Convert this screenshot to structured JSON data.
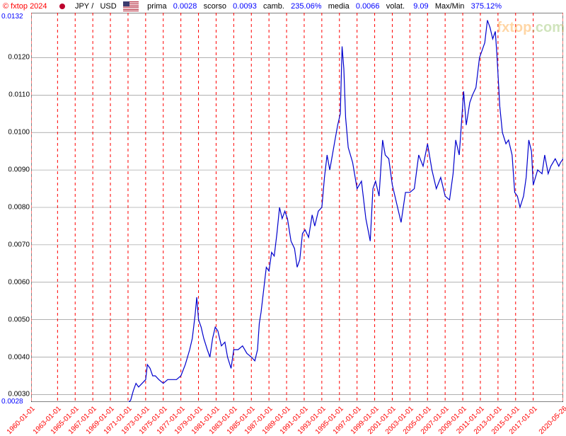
{
  "header": {
    "copyright": "© fxtop 2024",
    "base_currency": "JPY",
    "slash": "/",
    "quote_currency": "USD",
    "stats": [
      {
        "label": "prima",
        "value": "0.0028"
      },
      {
        "label": "scorso",
        "value": "0.0093"
      },
      {
        "label": "camb.",
        "value": "235.06%"
      },
      {
        "label": "media",
        "value": "0.0066"
      },
      {
        "label": "volat.",
        "value": "9.09"
      },
      {
        "label": "Max/Min",
        "value": "375.12%"
      }
    ]
  },
  "chart": {
    "type": "line",
    "background_color": "#ffffff",
    "grid_color": "#808080",
    "vline_color": "#ff0000",
    "vline_dash": "4,4",
    "line_color": "#0000cd",
    "line_width": 1.2,
    "y_axis": {
      "min_label": "0.0028",
      "max_label": "0.0132",
      "min": 0.0028,
      "max": 0.0132,
      "ticks": [
        {
          "v": 0.003,
          "label": "0.0030"
        },
        {
          "v": 0.004,
          "label": "0.0040"
        },
        {
          "v": 0.005,
          "label": "0.0050"
        },
        {
          "v": 0.006,
          "label": "0.0060"
        },
        {
          "v": 0.007,
          "label": "0.0070"
        },
        {
          "v": 0.008,
          "label": "0.0080"
        },
        {
          "v": 0.009,
          "label": "0.0090"
        },
        {
          "v": 0.01,
          "label": "0.0100"
        },
        {
          "v": 0.011,
          "label": "0.0110"
        },
        {
          "v": 0.012,
          "label": "0.0120"
        }
      ],
      "label_color": "#000000",
      "label_fontsize": 10
    },
    "x_axis": {
      "min": 1960.0,
      "max": 2020.4,
      "label_color": "#ff0000",
      "label_fontsize": 10,
      "vlines": [
        {
          "x": 1960.0,
          "label": "1960-01-01"
        },
        {
          "x": 1963.0,
          "label": "1963-01-01"
        },
        {
          "x": 1965.0,
          "label": "1965-01-01"
        },
        {
          "x": 1967.0,
          "label": "1967-01-01"
        },
        {
          "x": 1969.0,
          "label": "1969-01-01"
        },
        {
          "x": 1971.0,
          "label": "1971-01-01"
        },
        {
          "x": 1973.0,
          "label": "1973-01-01"
        },
        {
          "x": 1975.0,
          "label": "1975-01-01"
        },
        {
          "x": 1977.0,
          "label": "1977-01-01"
        },
        {
          "x": 1979.0,
          "label": "1979-01-01"
        },
        {
          "x": 1981.0,
          "label": "1981-01-01"
        },
        {
          "x": 1983.0,
          "label": "1983-01-01"
        },
        {
          "x": 1985.0,
          "label": "1985-01-01"
        },
        {
          "x": 1987.0,
          "label": "1987-01-01"
        },
        {
          "x": 1989.0,
          "label": "1989-01-01"
        },
        {
          "x": 1991.0,
          "label": "1991-01-01"
        },
        {
          "x": 1993.0,
          "label": "1993-01-01"
        },
        {
          "x": 1995.0,
          "label": "1995-01-01"
        },
        {
          "x": 1997.0,
          "label": "1997-01-01"
        },
        {
          "x": 1999.0,
          "label": "1999-01-01"
        },
        {
          "x": 2001.0,
          "label": "2001-01-01"
        },
        {
          "x": 2003.0,
          "label": "2003-01-01"
        },
        {
          "x": 2005.0,
          "label": "2005-01-01"
        },
        {
          "x": 2007.0,
          "label": "2007-01-01"
        },
        {
          "x": 2009.0,
          "label": "2009-01-01"
        },
        {
          "x": 2011.0,
          "label": "2011-01-01"
        },
        {
          "x": 2013.0,
          "label": "2013-01-01"
        },
        {
          "x": 2015.0,
          "label": "2015-01-01"
        },
        {
          "x": 2017.0,
          "label": "2017-01-01"
        },
        {
          "x": 2020.4,
          "label": "2020-05-26"
        }
      ]
    },
    "series": [
      {
        "x": 1960.0,
        "y": 0.00278
      },
      {
        "x": 1971.0,
        "y": 0.00278
      },
      {
        "x": 1971.3,
        "y": 0.00285
      },
      {
        "x": 1971.6,
        "y": 0.0031
      },
      {
        "x": 1971.9,
        "y": 0.0033
      },
      {
        "x": 1972.2,
        "y": 0.0032
      },
      {
        "x": 1972.6,
        "y": 0.0033
      },
      {
        "x": 1973.0,
        "y": 0.0034
      },
      {
        "x": 1973.2,
        "y": 0.0038
      },
      {
        "x": 1973.5,
        "y": 0.0037
      },
      {
        "x": 1973.8,
        "y": 0.0035
      },
      {
        "x": 1974.1,
        "y": 0.0035
      },
      {
        "x": 1974.5,
        "y": 0.0034
      },
      {
        "x": 1975.0,
        "y": 0.0033
      },
      {
        "x": 1975.5,
        "y": 0.0034
      },
      {
        "x": 1976.0,
        "y": 0.0034
      },
      {
        "x": 1976.5,
        "y": 0.0034
      },
      {
        "x": 1977.0,
        "y": 0.0035
      },
      {
        "x": 1977.5,
        "y": 0.0038
      },
      {
        "x": 1978.0,
        "y": 0.0042
      },
      {
        "x": 1978.3,
        "y": 0.0045
      },
      {
        "x": 1978.6,
        "y": 0.0051
      },
      {
        "x": 1978.8,
        "y": 0.0056
      },
      {
        "x": 1979.0,
        "y": 0.005
      },
      {
        "x": 1979.3,
        "y": 0.0048
      },
      {
        "x": 1979.6,
        "y": 0.0045
      },
      {
        "x": 1980.0,
        "y": 0.0042
      },
      {
        "x": 1980.3,
        "y": 0.004
      },
      {
        "x": 1980.6,
        "y": 0.0045
      },
      {
        "x": 1980.9,
        "y": 0.0048
      },
      {
        "x": 1981.2,
        "y": 0.0047
      },
      {
        "x": 1981.6,
        "y": 0.0043
      },
      {
        "x": 1982.0,
        "y": 0.0044
      },
      {
        "x": 1982.3,
        "y": 0.004
      },
      {
        "x": 1982.7,
        "y": 0.0037
      },
      {
        "x": 1983.0,
        "y": 0.0042
      },
      {
        "x": 1983.5,
        "y": 0.0042
      },
      {
        "x": 1984.0,
        "y": 0.0043
      },
      {
        "x": 1984.5,
        "y": 0.0041
      },
      {
        "x": 1985.0,
        "y": 0.004
      },
      {
        "x": 1985.4,
        "y": 0.0039
      },
      {
        "x": 1985.7,
        "y": 0.0042
      },
      {
        "x": 1985.9,
        "y": 0.0049
      },
      {
        "x": 1986.1,
        "y": 0.0052
      },
      {
        "x": 1986.4,
        "y": 0.0058
      },
      {
        "x": 1986.7,
        "y": 0.0064
      },
      {
        "x": 1987.0,
        "y": 0.0063
      },
      {
        "x": 1987.3,
        "y": 0.0068
      },
      {
        "x": 1987.6,
        "y": 0.0067
      },
      {
        "x": 1987.9,
        "y": 0.0073
      },
      {
        "x": 1988.2,
        "y": 0.008
      },
      {
        "x": 1988.5,
        "y": 0.0077
      },
      {
        "x": 1988.8,
        "y": 0.0079
      },
      {
        "x": 1989.1,
        "y": 0.0077
      },
      {
        "x": 1989.5,
        "y": 0.0071
      },
      {
        "x": 1989.9,
        "y": 0.0069
      },
      {
        "x": 1990.2,
        "y": 0.0064
      },
      {
        "x": 1990.5,
        "y": 0.0066
      },
      {
        "x": 1990.8,
        "y": 0.0073
      },
      {
        "x": 1991.1,
        "y": 0.0074
      },
      {
        "x": 1991.5,
        "y": 0.0072
      },
      {
        "x": 1991.9,
        "y": 0.0078
      },
      {
        "x": 1992.2,
        "y": 0.0075
      },
      {
        "x": 1992.6,
        "y": 0.0079
      },
      {
        "x": 1993.0,
        "y": 0.008
      },
      {
        "x": 1993.3,
        "y": 0.0088
      },
      {
        "x": 1993.6,
        "y": 0.0094
      },
      {
        "x": 1993.9,
        "y": 0.009
      },
      {
        "x": 1994.2,
        "y": 0.0094
      },
      {
        "x": 1994.5,
        "y": 0.0098
      },
      {
        "x": 1994.8,
        "y": 0.0102
      },
      {
        "x": 1995.1,
        "y": 0.0105
      },
      {
        "x": 1995.3,
        "y": 0.0123
      },
      {
        "x": 1995.5,
        "y": 0.0117
      },
      {
        "x": 1995.7,
        "y": 0.0104
      },
      {
        "x": 1996.0,
        "y": 0.0096
      },
      {
        "x": 1996.5,
        "y": 0.0092
      },
      {
        "x": 1997.0,
        "y": 0.0085
      },
      {
        "x": 1997.5,
        "y": 0.0087
      },
      {
        "x": 1998.0,
        "y": 0.0077
      },
      {
        "x": 1998.5,
        "y": 0.0071
      },
      {
        "x": 1998.8,
        "y": 0.0085
      },
      {
        "x": 1999.1,
        "y": 0.0087
      },
      {
        "x": 1999.5,
        "y": 0.0083
      },
      {
        "x": 1999.9,
        "y": 0.0098
      },
      {
        "x": 2000.2,
        "y": 0.0094
      },
      {
        "x": 2000.6,
        "y": 0.0093
      },
      {
        "x": 2001.0,
        "y": 0.0086
      },
      {
        "x": 2001.5,
        "y": 0.0081
      },
      {
        "x": 2002.0,
        "y": 0.0076
      },
      {
        "x": 2002.5,
        "y": 0.0084
      },
      {
        "x": 2003.0,
        "y": 0.0084
      },
      {
        "x": 2003.5,
        "y": 0.0085
      },
      {
        "x": 2004.0,
        "y": 0.0094
      },
      {
        "x": 2004.5,
        "y": 0.0091
      },
      {
        "x": 2005.0,
        "y": 0.0097
      },
      {
        "x": 2005.5,
        "y": 0.009
      },
      {
        "x": 2006.0,
        "y": 0.0085
      },
      {
        "x": 2006.5,
        "y": 0.0088
      },
      {
        "x": 2007.0,
        "y": 0.0083
      },
      {
        "x": 2007.5,
        "y": 0.0082
      },
      {
        "x": 2007.9,
        "y": 0.0089
      },
      {
        "x": 2008.2,
        "y": 0.0098
      },
      {
        "x": 2008.6,
        "y": 0.0094
      },
      {
        "x": 2008.9,
        "y": 0.0104
      },
      {
        "x": 2009.1,
        "y": 0.0111
      },
      {
        "x": 2009.4,
        "y": 0.0102
      },
      {
        "x": 2009.8,
        "y": 0.0108
      },
      {
        "x": 2010.1,
        "y": 0.011
      },
      {
        "x": 2010.5,
        "y": 0.0112
      },
      {
        "x": 2010.9,
        "y": 0.012
      },
      {
        "x": 2011.2,
        "y": 0.0122
      },
      {
        "x": 2011.5,
        "y": 0.0124
      },
      {
        "x": 2011.8,
        "y": 0.013
      },
      {
        "x": 2012.1,
        "y": 0.0128
      },
      {
        "x": 2012.4,
        "y": 0.0125
      },
      {
        "x": 2012.7,
        "y": 0.0127
      },
      {
        "x": 2012.9,
        "y": 0.012
      },
      {
        "x": 2013.2,
        "y": 0.0107
      },
      {
        "x": 2013.5,
        "y": 0.01
      },
      {
        "x": 2013.9,
        "y": 0.0097
      },
      {
        "x": 2014.2,
        "y": 0.0098
      },
      {
        "x": 2014.6,
        "y": 0.0094
      },
      {
        "x": 2014.9,
        "y": 0.0084
      },
      {
        "x": 2015.2,
        "y": 0.0083
      },
      {
        "x": 2015.5,
        "y": 0.008
      },
      {
        "x": 2015.9,
        "y": 0.0083
      },
      {
        "x": 2016.2,
        "y": 0.0088
      },
      {
        "x": 2016.5,
        "y": 0.0098
      },
      {
        "x": 2016.8,
        "y": 0.0095
      },
      {
        "x": 2017.0,
        "y": 0.0086
      },
      {
        "x": 2017.5,
        "y": 0.009
      },
      {
        "x": 2018.0,
        "y": 0.0089
      },
      {
        "x": 2018.3,
        "y": 0.0094
      },
      {
        "x": 2018.7,
        "y": 0.0089
      },
      {
        "x": 2019.0,
        "y": 0.0091
      },
      {
        "x": 2019.5,
        "y": 0.0093
      },
      {
        "x": 2019.9,
        "y": 0.0091
      },
      {
        "x": 2020.1,
        "y": 0.0092
      },
      {
        "x": 2020.4,
        "y": 0.0093
      }
    ]
  },
  "watermark": {
    "text1": "fxtop",
    "text2": ".com",
    "color1": "#ff8c00",
    "color2": "#7cb342"
  }
}
